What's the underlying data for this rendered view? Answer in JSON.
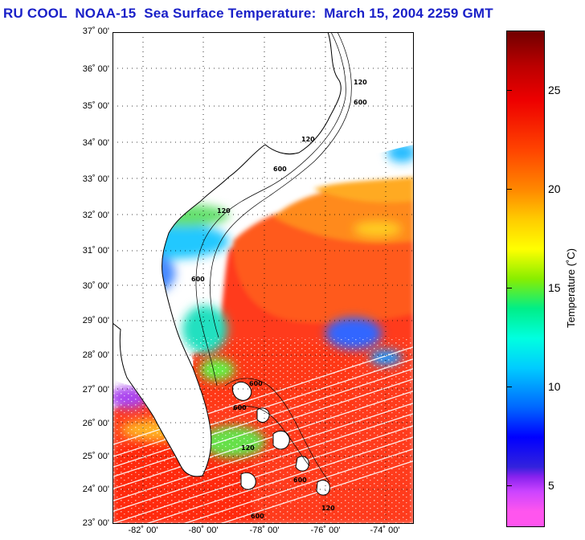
{
  "title": "RU COOL  NOAA-15  Sea Surface Temperature:  March 15, 2004 2259 GMT",
  "lat_labels": [
    "37˚ 00'",
    "36˚ 00'",
    "35˚ 00'",
    "34˚ 00'",
    "33˚ 00'",
    "32˚ 00'",
    "31˚ 00'",
    "30˚ 00'",
    "29˚ 00'",
    "28˚ 00'",
    "27˚ 00'",
    "26˚ 00'",
    "25˚ 00'",
    "24˚ 00'",
    "23˚ 00'"
  ],
  "lon_labels": [
    "-82˚ 00'",
    "-80˚ 00'",
    "-78˚ 00'",
    "-76˚ 00'",
    "-74˚ 00'"
  ],
  "colorbar": {
    "ticks": [
      "25",
      "20",
      "15",
      "10",
      "5"
    ],
    "label": "Temperature (˚C)"
  },
  "contour_labels": [
    "120",
    "600",
    "120",
    "600",
    "120",
    "600",
    "600",
    "600",
    "120",
    "600",
    "120",
    "600"
  ]
}
